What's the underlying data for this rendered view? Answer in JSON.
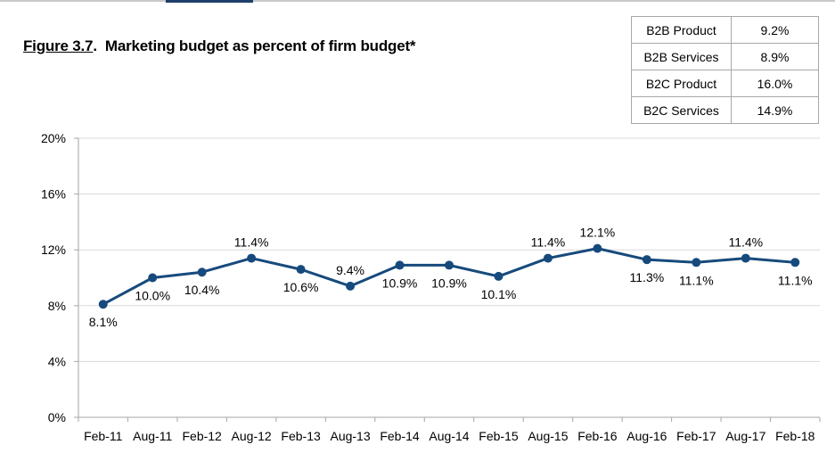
{
  "page": {
    "figure_label": "Figure 3.7",
    "figure_title": "Marketing budget as percent of firm budget*"
  },
  "summary_table": [
    {
      "label": "B2B Product",
      "value": "9.2%"
    },
    {
      "label": "B2B Services",
      "value": "8.9%"
    },
    {
      "label": "B2C Product",
      "value": "16.0%"
    },
    {
      "label": "B2C Services",
      "value": "14.9%"
    }
  ],
  "chart_data": {
    "type": "line",
    "title": "",
    "xlabel": "",
    "ylabel": "",
    "categories": [
      "Feb-11",
      "Aug-11",
      "Feb-12",
      "Aug-12",
      "Feb-13",
      "Aug-13",
      "Feb-14",
      "Aug-14",
      "Feb-15",
      "Aug-15",
      "Feb-16",
      "Aug-16",
      "Feb-17",
      "Aug-17",
      "Feb-18"
    ],
    "series": [
      {
        "values": [
          8.1,
          10.0,
          10.4,
          11.4,
          10.6,
          9.4,
          10.9,
          10.9,
          10.1,
          11.4,
          12.1,
          11.3,
          11.1,
          11.4,
          11.1
        ],
        "data_labels": [
          "8.1%",
          "10.0%",
          "10.4%",
          "11.4%",
          "10.6%",
          "9.4%",
          "10.9%",
          "10.9%",
          "10.1%",
          "11.4%",
          "12.1%",
          "11.3%",
          "11.1%",
          "11.4%",
          "11.1%"
        ],
        "label_side": [
          "below",
          "below",
          "below",
          "above",
          "below",
          "above",
          "below",
          "below",
          "below",
          "above",
          "above",
          "below",
          "below",
          "above",
          "below"
        ],
        "color": "#174a7c"
      }
    ],
    "ylim": [
      0,
      20
    ],
    "yticks": [
      0,
      4,
      8,
      12,
      16,
      20
    ],
    "ytick_labels": [
      "0%",
      "4%",
      "8%",
      "12%",
      "16%",
      "20%"
    ],
    "grid": true,
    "grid_color": "#d9d9d9",
    "axis_color": "#a6a6a6"
  }
}
